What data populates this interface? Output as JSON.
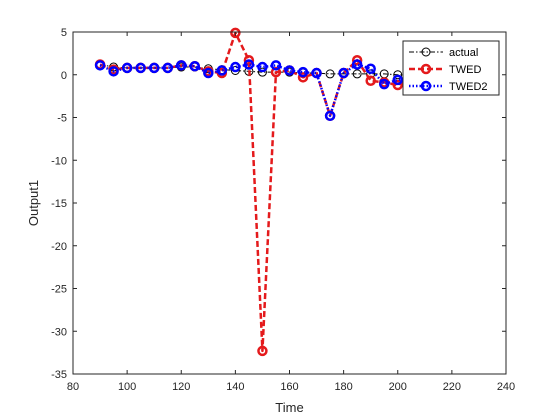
{
  "chart_data": {
    "type": "line",
    "xlabel": "Time",
    "ylabel": "Output1",
    "xlim": [
      80,
      240
    ],
    "ylim": [
      -35,
      5
    ],
    "xticks": [
      80,
      100,
      120,
      140,
      160,
      180,
      200,
      220,
      240
    ],
    "xtick_labels": [
      "80",
      "100",
      "120",
      "140",
      "160",
      "180",
      "200",
      "220",
      "240"
    ],
    "yticks": [
      -35,
      -30,
      -25,
      -20,
      -15,
      -10,
      -5,
      0,
      5
    ],
    "ytick_labels": [
      "-35",
      "-30",
      "-25",
      "-20",
      "-15",
      "-10",
      "-5",
      "0",
      "5"
    ],
    "grid": false,
    "legend_position": "top-right",
    "series": [
      {
        "name": "actual",
        "color": "#000000",
        "line_style": "dash-dot",
        "marker": "circle",
        "x": [
          90,
          95,
          100,
          105,
          110,
          115,
          120,
          125,
          130,
          135,
          140,
          145,
          150,
          155,
          160,
          165,
          170,
          175,
          180,
          185,
          190,
          195,
          200,
          205,
          210,
          215,
          220,
          225,
          230,
          235
        ],
        "y": [
          1.2,
          0.9,
          0.8,
          0.8,
          0.8,
          0.8,
          0.9,
          0.9,
          0.7,
          0.6,
          0.5,
          0.4,
          0.3,
          0.3,
          0.3,
          0.2,
          0.2,
          0.1,
          0.1,
          0.1,
          0.1,
          0.1,
          0.0,
          0.0,
          0.0,
          0.0,
          0.0,
          0.0,
          0.0,
          0.0
        ]
      },
      {
        "name": "TWED",
        "color": "#e41a1c",
        "line_style": "dash",
        "marker": "circle",
        "x": [
          90,
          95,
          100,
          105,
          110,
          115,
          120,
          125,
          130,
          135,
          140,
          145,
          150,
          155,
          160,
          165,
          170,
          175,
          180,
          185,
          190,
          195,
          200,
          205,
          210,
          215,
          220,
          225,
          230,
          235
        ],
        "y": [
          1.2,
          0.6,
          0.8,
          0.8,
          0.8,
          0.8,
          1.1,
          1.0,
          0.4,
          0.2,
          4.9,
          1.7,
          -32.3,
          0.3,
          0.5,
          -0.3,
          0.2,
          -4.8,
          0.2,
          1.7,
          -0.7,
          -0.9,
          -1.2,
          -0.5,
          -0.3,
          -0.2,
          -0.1,
          0.0,
          0.1,
          0.0
        ]
      },
      {
        "name": "TWED2",
        "color": "#0000ff",
        "line_style": "dotted",
        "marker": "circle",
        "x": [
          90,
          95,
          100,
          105,
          110,
          115,
          120,
          125,
          130,
          135,
          140,
          145,
          150,
          155,
          160,
          165,
          170,
          175,
          180,
          185,
          190,
          195,
          200,
          205,
          210,
          215,
          220,
          225,
          230,
          235
        ],
        "y": [
          1.1,
          0.4,
          0.8,
          0.8,
          0.8,
          0.8,
          1.1,
          1.0,
          0.2,
          0.5,
          0.9,
          1.2,
          0.9,
          1.1,
          0.5,
          0.3,
          0.2,
          -4.8,
          0.2,
          1.2,
          0.7,
          -1.1,
          -0.6,
          -0.4,
          -0.2,
          -0.2,
          -0.1,
          0.0,
          0.1,
          0.0
        ]
      }
    ]
  }
}
